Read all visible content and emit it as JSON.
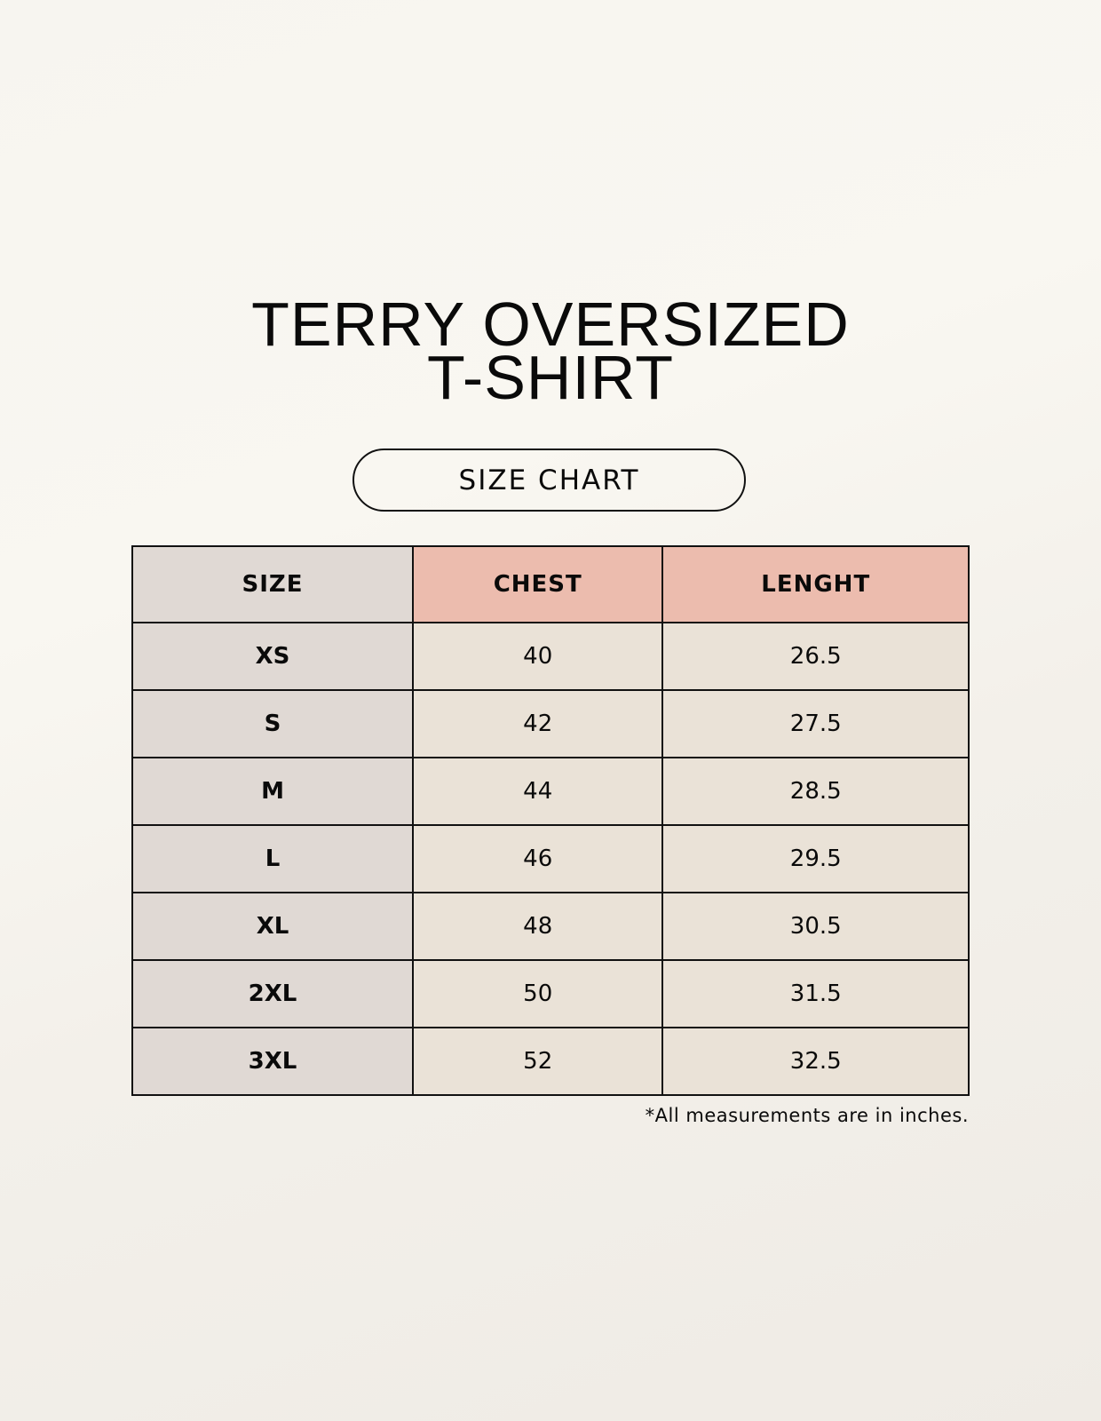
{
  "title": {
    "line1": "TERRY OVERSIZED",
    "line2": "T-SHIRT"
  },
  "subtitle": "SIZE CHART",
  "table": {
    "headers": [
      "SIZE",
      "CHEST",
      "LENGHT"
    ],
    "rows": [
      [
        "XS",
        "40",
        "26.5"
      ],
      [
        "S",
        "42",
        "27.5"
      ],
      [
        "M",
        "44",
        "28.5"
      ],
      [
        "L",
        "46",
        "29.5"
      ],
      [
        "XL",
        "48",
        "30.5"
      ],
      [
        "2XL",
        "50",
        "31.5"
      ],
      [
        "3XL",
        "52",
        "32.5"
      ]
    ]
  },
  "footnote": "*All measurements are in inches.",
  "colors": {
    "size_column": "#e0d9d4",
    "header_accent": "#ecbcae",
    "value_cells": "#eae2d7"
  }
}
